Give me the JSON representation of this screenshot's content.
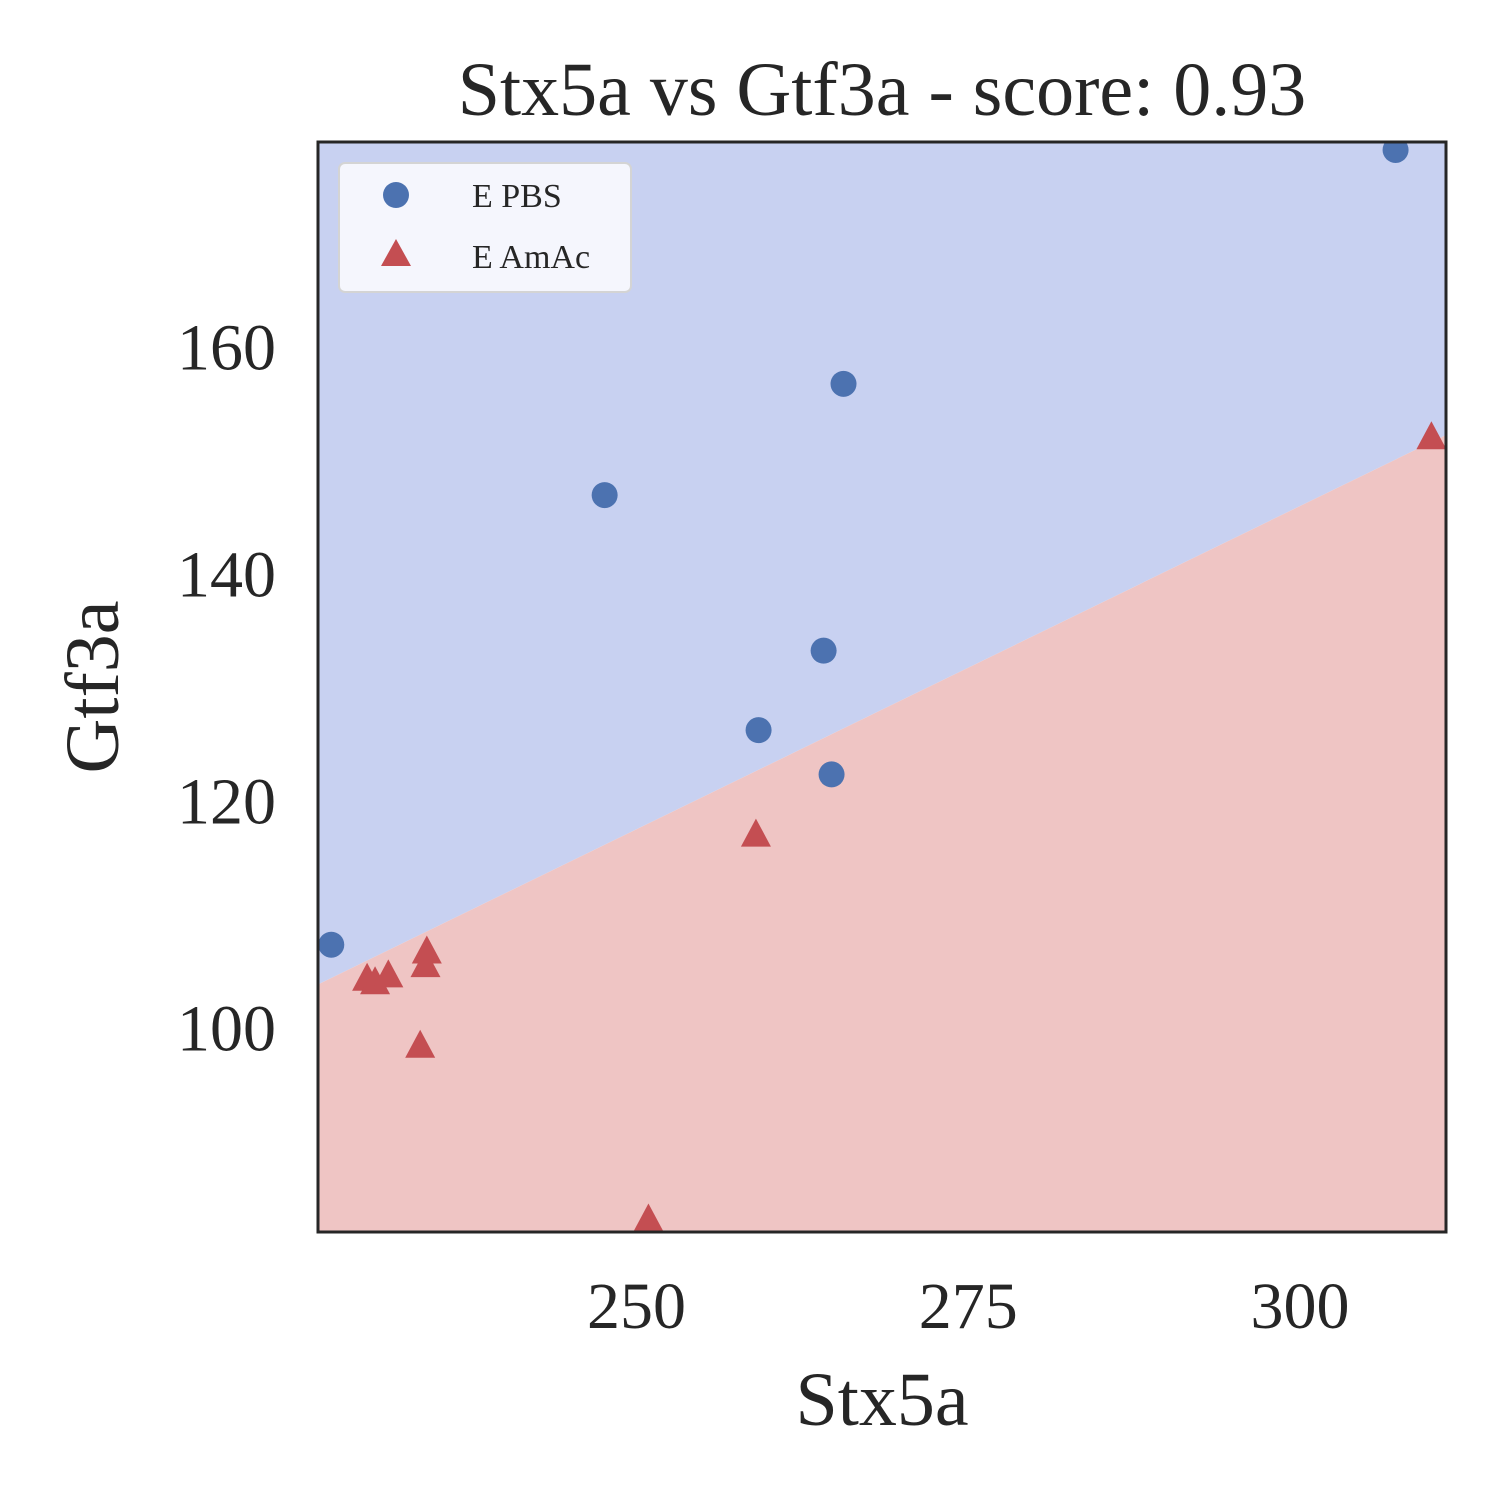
{
  "chart_data": {
    "type": "scatter",
    "title": "Stx5a vs Gtf3a - score: 0.93",
    "xlabel": "Stx5a",
    "ylabel": "Gtf3a",
    "xlim": [
      226,
      311
    ],
    "ylim": [
      82,
      178
    ],
    "xticks": [
      250,
      275,
      300
    ],
    "yticks": [
      100,
      120,
      140,
      160
    ],
    "grid": false,
    "legend_position": "top-left",
    "decision_boundary": {
      "points": [
        [
          226,
          103.8
        ],
        [
          311,
          152.2
        ]
      ],
      "region_above_color": "#c8d1f1",
      "region_below_color": "#efc5c4"
    },
    "series": [
      {
        "name": "E PBS",
        "marker": "circle",
        "color": "#4c72b0",
        "points": [
          [
            227.0,
            107.3
          ],
          [
            247.6,
            146.9
          ],
          [
            259.2,
            126.2
          ],
          [
            264.1,
            133.2
          ],
          [
            264.7,
            122.3
          ],
          [
            265.6,
            156.7
          ],
          [
            307.2,
            177.3
          ]
        ]
      },
      {
        "name": "E AmAc",
        "marker": "triangle",
        "color": "#c44e52",
        "points": [
          [
            229.7,
            104.3
          ],
          [
            230.3,
            104.0
          ],
          [
            231.3,
            104.6
          ],
          [
            233.7,
            98.4
          ],
          [
            234.1,
            105.5
          ],
          [
            234.2,
            106.7
          ],
          [
            250.9,
            83.1
          ],
          [
            259.0,
            117.0
          ],
          [
            309.9,
            152.0
          ]
        ]
      }
    ]
  }
}
